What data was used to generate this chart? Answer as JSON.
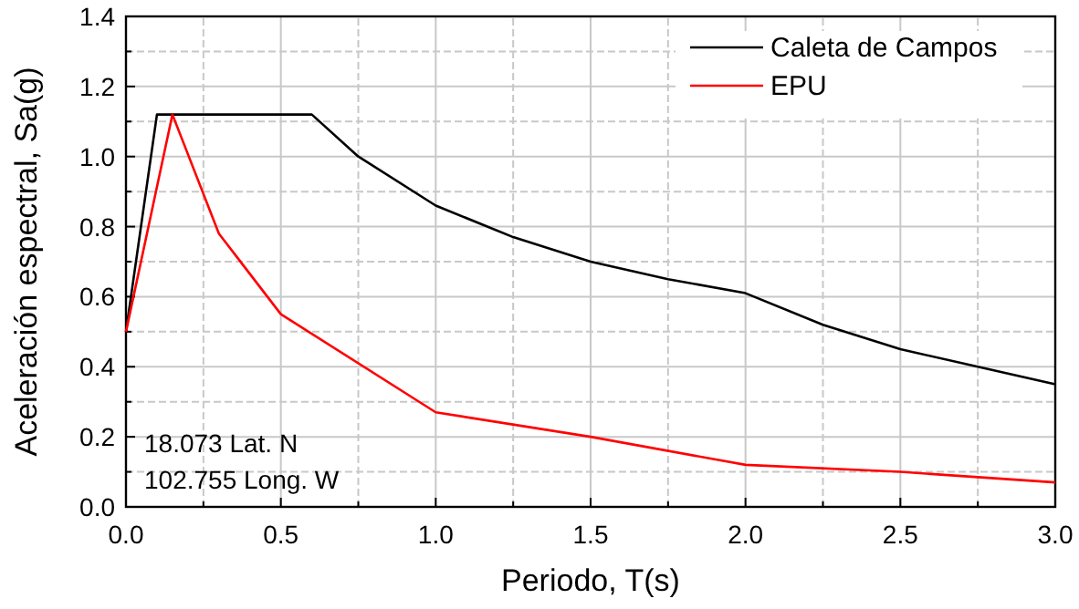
{
  "chart_data": {
    "type": "line",
    "xlabel": "Periodo, T(s)",
    "ylabel": "Aceleración espectral, Sa(g)",
    "xlim": [
      0,
      3
    ],
    "ylim": [
      0,
      1.4
    ],
    "xticks": [
      {
        "value": 0,
        "label": "0.0"
      },
      {
        "value": 0.25,
        "label": null
      },
      {
        "value": 0.5,
        "label": "0.5"
      },
      {
        "value": 0.75,
        "label": null
      },
      {
        "value": 1,
        "label": "1.0"
      },
      {
        "value": 1.25,
        "label": null
      },
      {
        "value": 1.5,
        "label": "1.5"
      },
      {
        "value": 1.75,
        "label": null
      },
      {
        "value": 2,
        "label": "2.0"
      },
      {
        "value": 2.25,
        "label": null
      },
      {
        "value": 2.5,
        "label": "2.5"
      },
      {
        "value": 2.75,
        "label": null
      },
      {
        "value": 3,
        "label": "3.0"
      }
    ],
    "yticks": [
      {
        "value": 0,
        "label": "0.0"
      },
      {
        "value": 0.1,
        "label": null
      },
      {
        "value": 0.2,
        "label": "0.2"
      },
      {
        "value": 0.3,
        "label": null
      },
      {
        "value": 0.4,
        "label": "0.4"
      },
      {
        "value": 0.5,
        "label": null
      },
      {
        "value": 0.6,
        "label": "0.6"
      },
      {
        "value": 0.7,
        "label": null
      },
      {
        "value": 0.8,
        "label": "0.8"
      },
      {
        "value": 0.9,
        "label": null
      },
      {
        "value": 1,
        "label": "1.0"
      },
      {
        "value": 1.1,
        "label": null
      },
      {
        "value": 1.2,
        "label": "1.2"
      },
      {
        "value": 1.3,
        "label": null
      },
      {
        "value": 1.4,
        "label": "1.4"
      }
    ],
    "grid": true,
    "legend": "top right",
    "marker": "none",
    "line_style": "solid",
    "series": [
      {
        "name": "Caleta de Campos",
        "color": "#000000",
        "x": [
          0,
          0.1,
          0.6,
          0.75,
          1,
          1.25,
          1.5,
          1.75,
          2,
          2.25,
          2.5,
          2.75,
          3
        ],
        "values": [
          0.5,
          1.12,
          1.12,
          1.0,
          0.86,
          0.77,
          0.7,
          0.65,
          0.61,
          0.52,
          0.45,
          0.4,
          0.35
        ]
      },
      {
        "name": "EPU",
        "color": "#ff0000",
        "x": [
          0,
          0.15,
          0.3,
          0.5,
          1,
          1.5,
          2,
          2.5,
          3
        ],
        "values": [
          0.5,
          1.12,
          0.78,
          0.55,
          0.27,
          0.2,
          0.12,
          0.1,
          0.07
        ]
      }
    ],
    "annotations": [
      "18.073 Lat. N",
      "102.755 Long. W"
    ]
  }
}
